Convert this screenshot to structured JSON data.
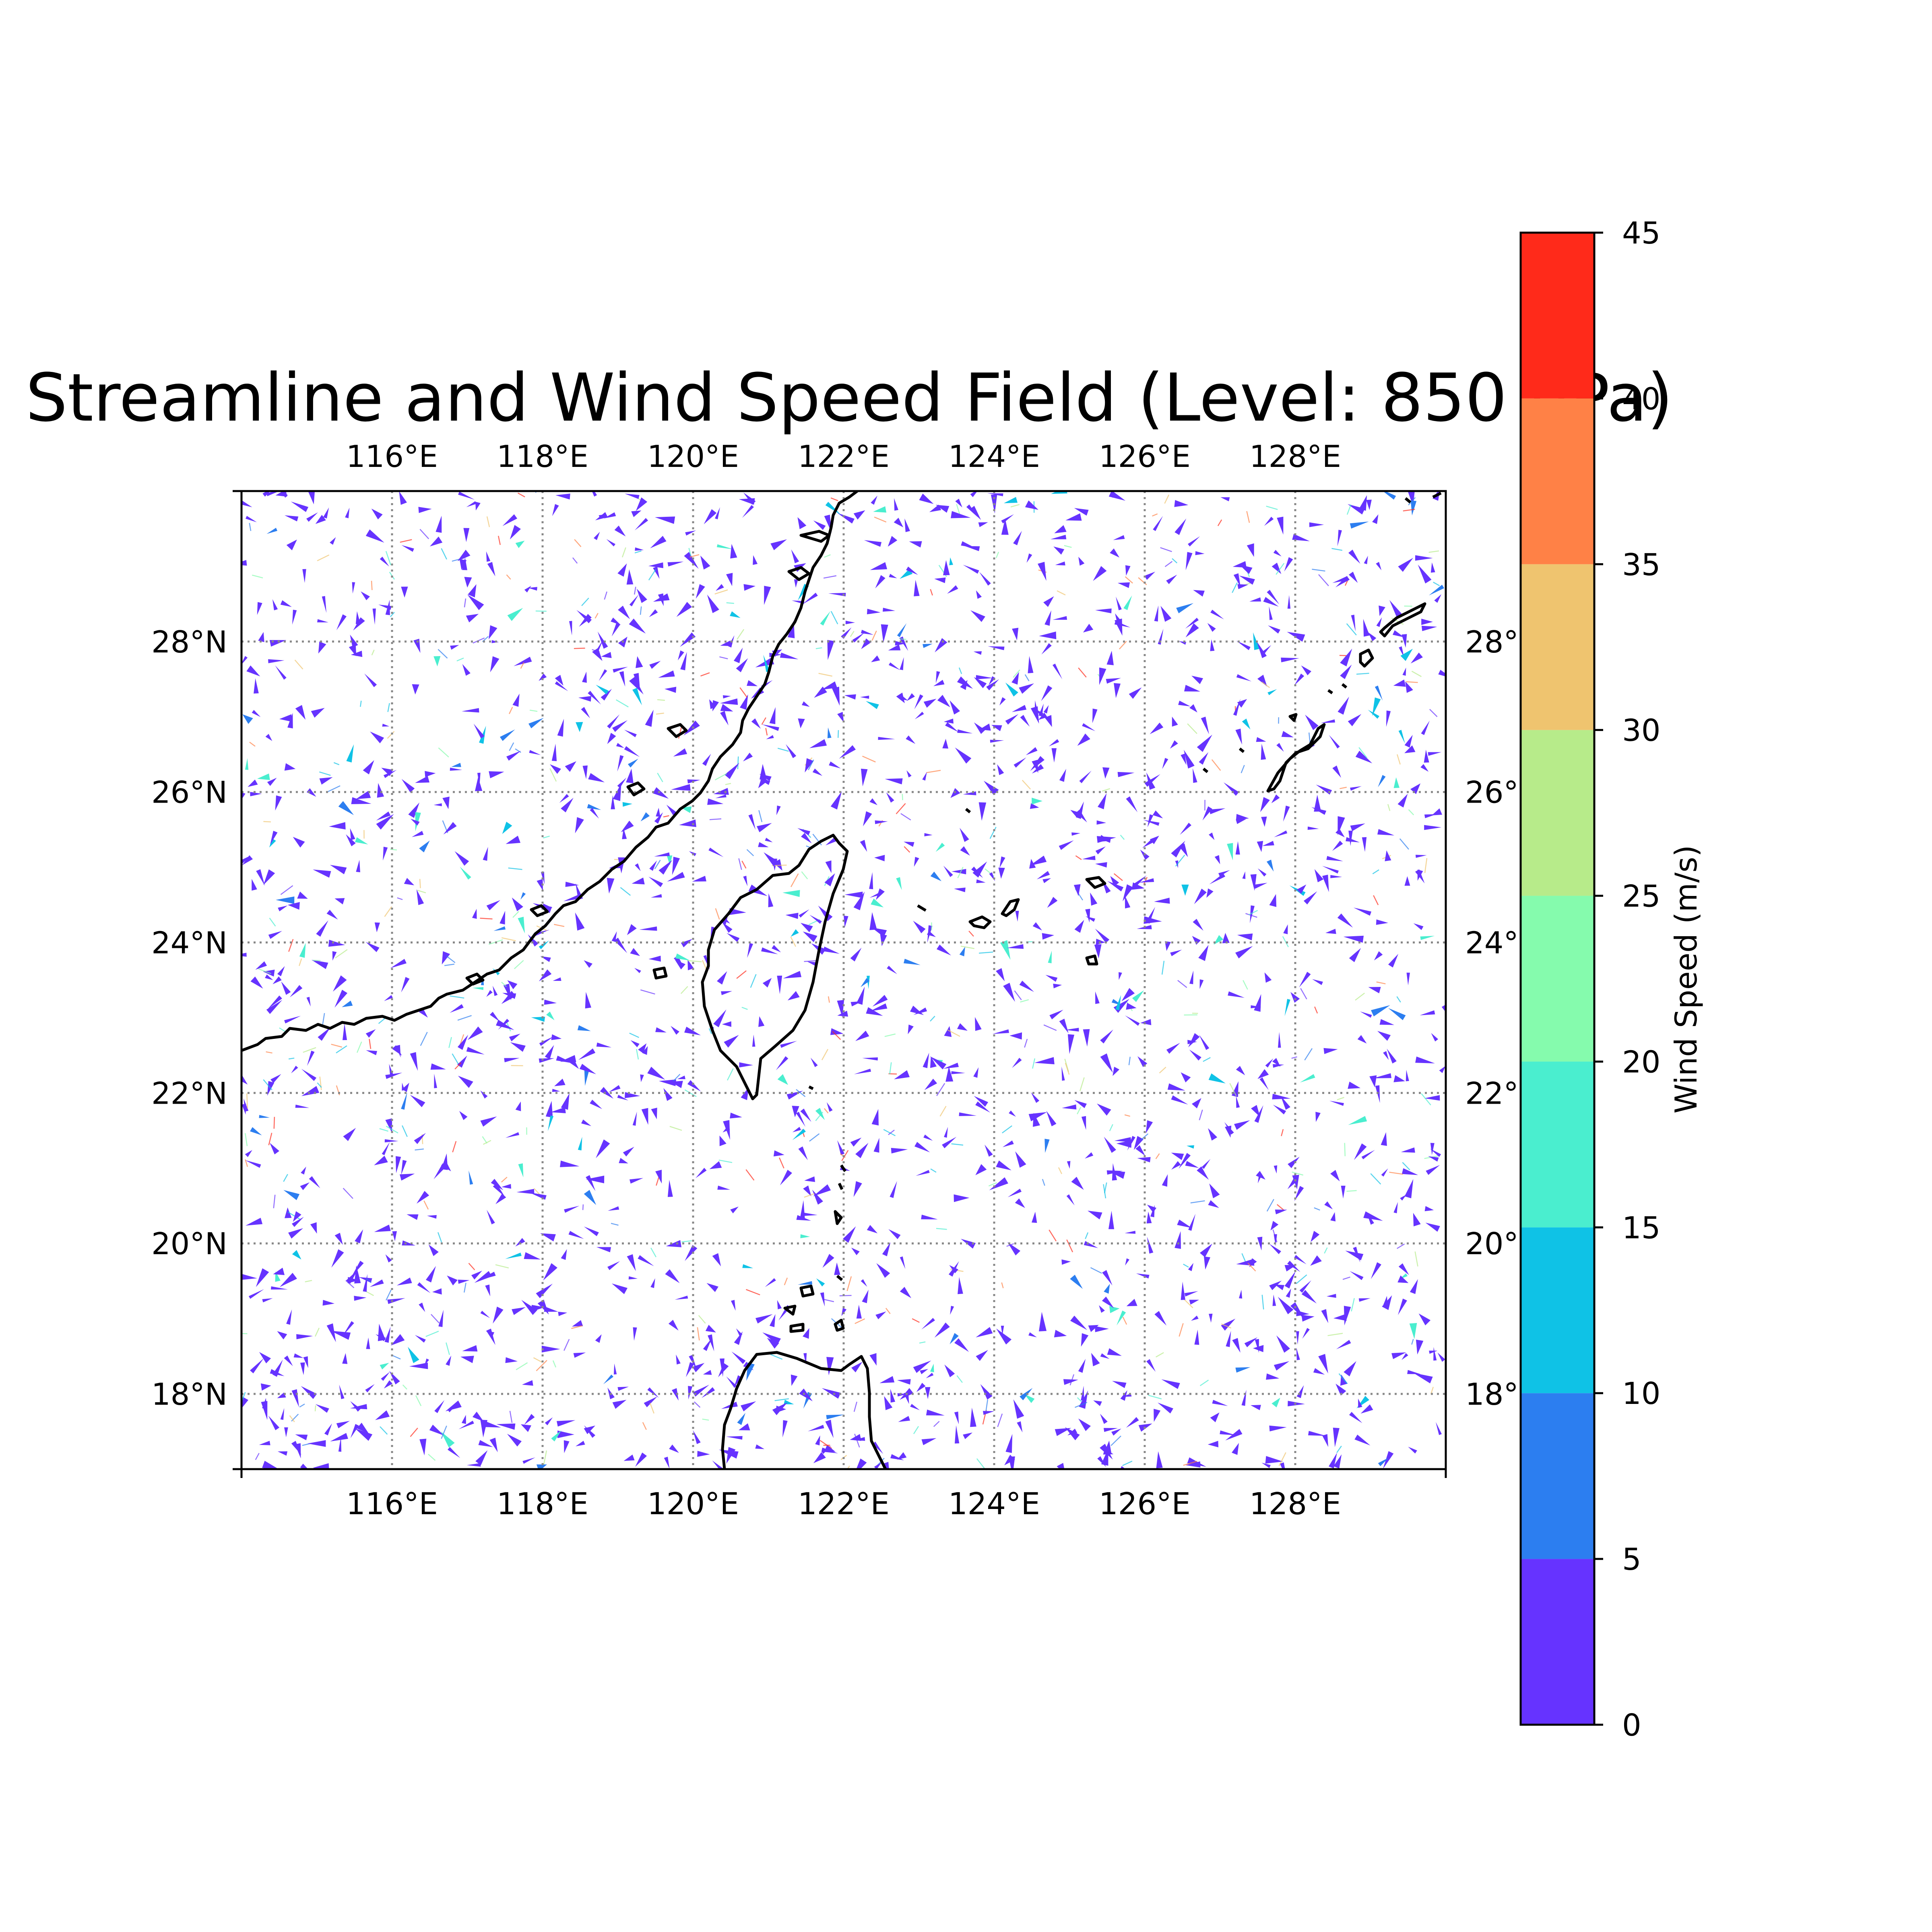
{
  "title": "Streamline and Wind Speed Field (Level: 850 hPa)",
  "chart_data": {
    "type": "map",
    "extent": {
      "lon": [
        114,
        130
      ],
      "lat": [
        17,
        30
      ]
    },
    "lon_ticks": [
      116,
      118,
      120,
      122,
      124,
      126,
      128
    ],
    "lat_ticks": [
      18,
      20,
      22,
      24,
      26,
      28
    ],
    "lon_tick_labels": [
      "116°E",
      "118°E",
      "120°E",
      "122°E",
      "124°E",
      "126°E",
      "128°E"
    ],
    "lat_tick_labels": [
      "18°N",
      "20°N",
      "22°N",
      "24°N",
      "26°N",
      "28°N"
    ],
    "right_lat_tick_labels": [
      "18°",
      "20°",
      "22°",
      "24°",
      "26°",
      "28°"
    ],
    "grid": "dotted",
    "field": "wind speed streamline fragments, mostly 0-5 m/s",
    "colorbar": {
      "label": "Wind Speed (m/s)",
      "levels": [
        0,
        5,
        10,
        15,
        20,
        25,
        30,
        35,
        40,
        45
      ],
      "tick_labels": [
        "0",
        "5",
        "10",
        "15",
        "20",
        "25",
        "30",
        "35",
        "40",
        "45"
      ],
      "colors": [
        "#6633ff",
        "#2c7ef0",
        "#0fc2e6",
        "#4aeecf",
        "#85fbad",
        "#b7eb8a",
        "#efc46f",
        "#ff8146",
        "#ff2a1a"
      ]
    },
    "coastlines": [
      "China mainland",
      "Taiwan",
      "Luzon",
      "Ryukyu Islands",
      "Penghu",
      "Batanes"
    ]
  }
}
